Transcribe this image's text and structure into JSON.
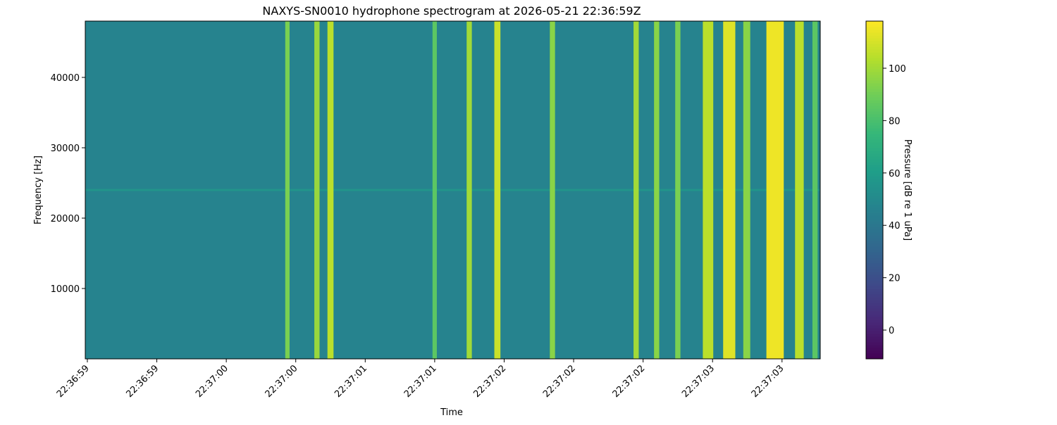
{
  "chart_data": {
    "type": "spectrogram",
    "title": "NAXYS-SN0010 hydrophone spectrogram at 2026-05-21 22:36:59Z",
    "x_label": "Time",
    "y_label": "Frequency [Hz]",
    "colorbar_label": "Pressure [dB re 1 uPa]",
    "colormap": "viridis",
    "xlim": [
      -0.012,
      4.22
    ],
    "xticks": [
      {
        "value": 0.0,
        "label": "22:36:59"
      },
      {
        "value": 0.4,
        "label": "22:36:59"
      },
      {
        "value": 0.8,
        "label": "22:37:00"
      },
      {
        "value": 1.2,
        "label": "22:37:00"
      },
      {
        "value": 1.6,
        "label": "22:37:01"
      },
      {
        "value": 2.0,
        "label": "22:37:01"
      },
      {
        "value": 2.4,
        "label": "22:37:02"
      },
      {
        "value": 2.8,
        "label": "22:37:02"
      },
      {
        "value": 3.2,
        "label": "22:37:02"
      },
      {
        "value": 3.6,
        "label": "22:37:03"
      },
      {
        "value": 4.0,
        "label": "22:37:03"
      }
    ],
    "ylim": [
      0,
      48000
    ],
    "yticks": [
      10000,
      20000,
      30000,
      40000
    ],
    "clim": [
      -11,
      118
    ],
    "cticks": [
      0,
      20,
      40,
      60,
      80,
      100
    ],
    "background_level": 47,
    "tone": {
      "frequency": 24000,
      "level": 56
    },
    "bands": {
      "times": [
        1.152,
        1.322,
        1.4,
        2.0,
        2.199,
        2.361,
        2.678,
        3.16,
        3.278,
        3.4,
        3.574,
        3.696,
        3.797,
        3.96,
        4.1,
        4.19
      ],
      "widths": [
        0.025,
        0.03,
        0.035,
        0.025,
        0.03,
        0.035,
        0.03,
        0.03,
        0.03,
        0.03,
        0.06,
        0.07,
        0.04,
        0.1,
        0.05,
        0.03
      ],
      "levels": [
        92,
        98,
        105,
        85,
        100,
        108,
        95,
        100,
        95,
        92,
        105,
        112,
        95,
        115,
        105,
        85
      ]
    }
  }
}
